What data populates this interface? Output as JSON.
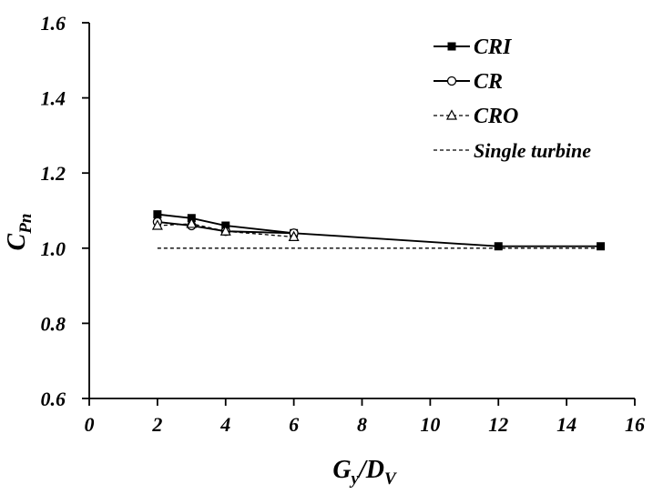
{
  "chart_data": {
    "type": "line",
    "xlabel": {
      "main": "G",
      "sub1": "y",
      "sep": "/D",
      "sub2": "V"
    },
    "ylabel": {
      "main": "C",
      "sub": "Pn"
    },
    "xlim": [
      0,
      16
    ],
    "ylim": [
      0.6,
      1.6
    ],
    "xticks": [
      "0",
      "2",
      "4",
      "6",
      "8",
      "10",
      "12",
      "14",
      "16"
    ],
    "yticks": [
      "0.6",
      "0.8",
      "1.0",
      "1.2",
      "1.4",
      "1.6"
    ],
    "grid": false,
    "legend_position": "top-right",
    "series": [
      {
        "name": "CRI",
        "marker": "filled-square",
        "line": "solid",
        "x": [
          2,
          3,
          4,
          6,
          12,
          15
        ],
        "y": [
          1.09,
          1.08,
          1.06,
          1.04,
          1.005,
          1.005
        ]
      },
      {
        "name": "CR",
        "marker": "open-circle",
        "line": "solid",
        "x": [
          2,
          3,
          4,
          6
        ],
        "y": [
          1.07,
          1.06,
          1.045,
          1.04
        ]
      },
      {
        "name": "CRO",
        "marker": "open-triangle",
        "line": "dashed",
        "x": [
          2,
          3,
          4,
          6
        ],
        "y": [
          1.06,
          1.065,
          1.045,
          1.03
        ]
      },
      {
        "name": "Single turbine",
        "marker": "none",
        "line": "dashed",
        "x": [
          2,
          15
        ],
        "y": [
          1.0,
          1.0
        ]
      }
    ]
  }
}
